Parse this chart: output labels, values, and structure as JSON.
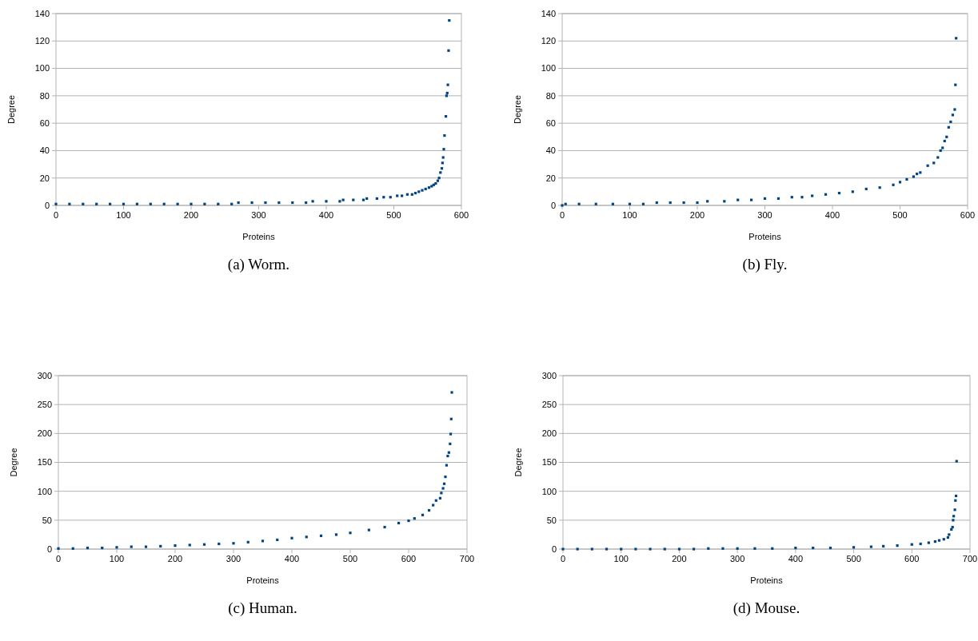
{
  "chart_data": [
    {
      "type": "scatter",
      "title": "(a) Worm.",
      "xlabel": "Proteins",
      "ylabel": "Degree",
      "xlim": [
        0,
        600
      ],
      "xticks": [
        0,
        100,
        200,
        300,
        400,
        500,
        600
      ],
      "ylim": [
        0,
        140
      ],
      "yticks": [
        0,
        20,
        40,
        60,
        80,
        100,
        120,
        140
      ],
      "grid": "y",
      "marker": "square",
      "series": [
        {
          "color": "#004586",
          "x": [
            0,
            20,
            40,
            60,
            80,
            100,
            120,
            140,
            160,
            180,
            200,
            220,
            240,
            260,
            270,
            290,
            310,
            330,
            350,
            370,
            380,
            400,
            420,
            425,
            440,
            455,
            460,
            475,
            485,
            495,
            505,
            512,
            520,
            527,
            532,
            537,
            542,
            547,
            552,
            556,
            559,
            562,
            565,
            567,
            569,
            571,
            572,
            573,
            574,
            575,
            577,
            578,
            579,
            580,
            581,
            582
          ],
          "values": [
            1,
            1,
            1,
            1,
            1,
            1,
            1,
            1,
            1,
            1,
            1,
            1,
            1,
            1,
            2,
            2,
            2,
            2,
            2,
            2,
            3,
            3,
            3,
            4,
            4,
            4,
            5,
            5,
            6,
            6,
            7,
            7,
            8,
            8,
            9,
            10,
            11,
            12,
            13,
            14,
            15,
            16,
            18,
            20,
            24,
            27,
            31,
            35,
            41,
            51,
            65,
            80,
            82,
            88,
            113,
            135
          ]
        }
      ]
    },
    {
      "type": "scatter",
      "title": "(b) Fly.",
      "xlabel": "Proteins",
      "ylabel": "Degree",
      "xlim": [
        0,
        600
      ],
      "xticks": [
        0,
        100,
        200,
        300,
        400,
        500,
        600
      ],
      "ylim": [
        0,
        140
      ],
      "yticks": [
        0,
        20,
        40,
        60,
        80,
        100,
        120,
        140
      ],
      "grid": "y",
      "marker": "square",
      "series": [
        {
          "color": "#004586",
          "x": [
            0,
            5,
            25,
            50,
            75,
            100,
            120,
            140,
            160,
            180,
            200,
            215,
            240,
            260,
            280,
            300,
            320,
            340,
            355,
            370,
            390,
            410,
            430,
            450,
            470,
            490,
            500,
            510,
            520,
            525,
            530,
            541,
            550,
            556,
            560,
            563,
            566,
            569,
            572,
            575,
            578,
            581,
            582,
            583
          ],
          "values": [
            0,
            1,
            1,
            1,
            1,
            1,
            1,
            2,
            2,
            2,
            2,
            3,
            3,
            4,
            4,
            5,
            5,
            6,
            6,
            7,
            8,
            9,
            10,
            12,
            13,
            15,
            17,
            19,
            21,
            23,
            24,
            29,
            31,
            35,
            40,
            42,
            47,
            50,
            57,
            61,
            66,
            70,
            88,
            122
          ]
        }
      ]
    },
    {
      "type": "scatter",
      "title": "(c) Human.",
      "xlabel": "Proteins",
      "ylabel": "Degree",
      "xlim": [
        0,
        700
      ],
      "xticks": [
        0,
        100,
        200,
        300,
        400,
        500,
        600,
        700
      ],
      "ylim": [
        0,
        300
      ],
      "yticks": [
        0,
        50,
        100,
        150,
        200,
        250,
        300
      ],
      "grid": "y",
      "marker": "square",
      "series": [
        {
          "color": "#004586",
          "x": [
            0,
            25,
            50,
            75,
            100,
            125,
            150,
            175,
            200,
            225,
            250,
            275,
            300,
            325,
            350,
            375,
            400,
            425,
            450,
            476,
            500,
            532,
            559,
            583,
            600,
            610,
            624,
            635,
            642,
            647,
            654,
            656,
            659,
            661,
            663,
            665,
            667,
            669,
            671,
            672,
            673,
            674
          ],
          "values": [
            1,
            1,
            2,
            2,
            3,
            4,
            4,
            5,
            6,
            7,
            8,
            9,
            10,
            12,
            14,
            16,
            19,
            21,
            23,
            25,
            28,
            33,
            38,
            45,
            49,
            53,
            59,
            67,
            76,
            84,
            88,
            97,
            105,
            113,
            125,
            145,
            161,
            167,
            182,
            199,
            225,
            271
          ]
        }
      ]
    },
    {
      "type": "scatter",
      "title": "(d) Mouse.",
      "xlabel": "Proteins",
      "ylabel": "Degree",
      "xlim": [
        0,
        700
      ],
      "xticks": [
        0,
        100,
        200,
        300,
        400,
        500,
        600,
        700
      ],
      "ylim": [
        0,
        300
      ],
      "yticks": [
        0,
        50,
        100,
        150,
        200,
        250,
        300
      ],
      "grid": "y",
      "marker": "square",
      "series": [
        {
          "color": "#004586",
          "x": [
            0,
            25,
            50,
            75,
            100,
            125,
            150,
            175,
            200,
            225,
            250,
            275,
            300,
            330,
            360,
            400,
            430,
            460,
            500,
            530,
            551,
            575,
            600,
            615,
            629,
            640,
            647,
            655,
            662,
            664,
            668,
            670,
            671,
            672,
            674,
            675,
            676,
            677
          ],
          "values": [
            0,
            0,
            0,
            0,
            0,
            0,
            0,
            0,
            0,
            0,
            1,
            1,
            1,
            1,
            1,
            2,
            2,
            2,
            3,
            4,
            5,
            6,
            8,
            9,
            11,
            13,
            15,
            17,
            20,
            25,
            34,
            38,
            50,
            57,
            68,
            84,
            92,
            152
          ]
        }
      ]
    }
  ]
}
